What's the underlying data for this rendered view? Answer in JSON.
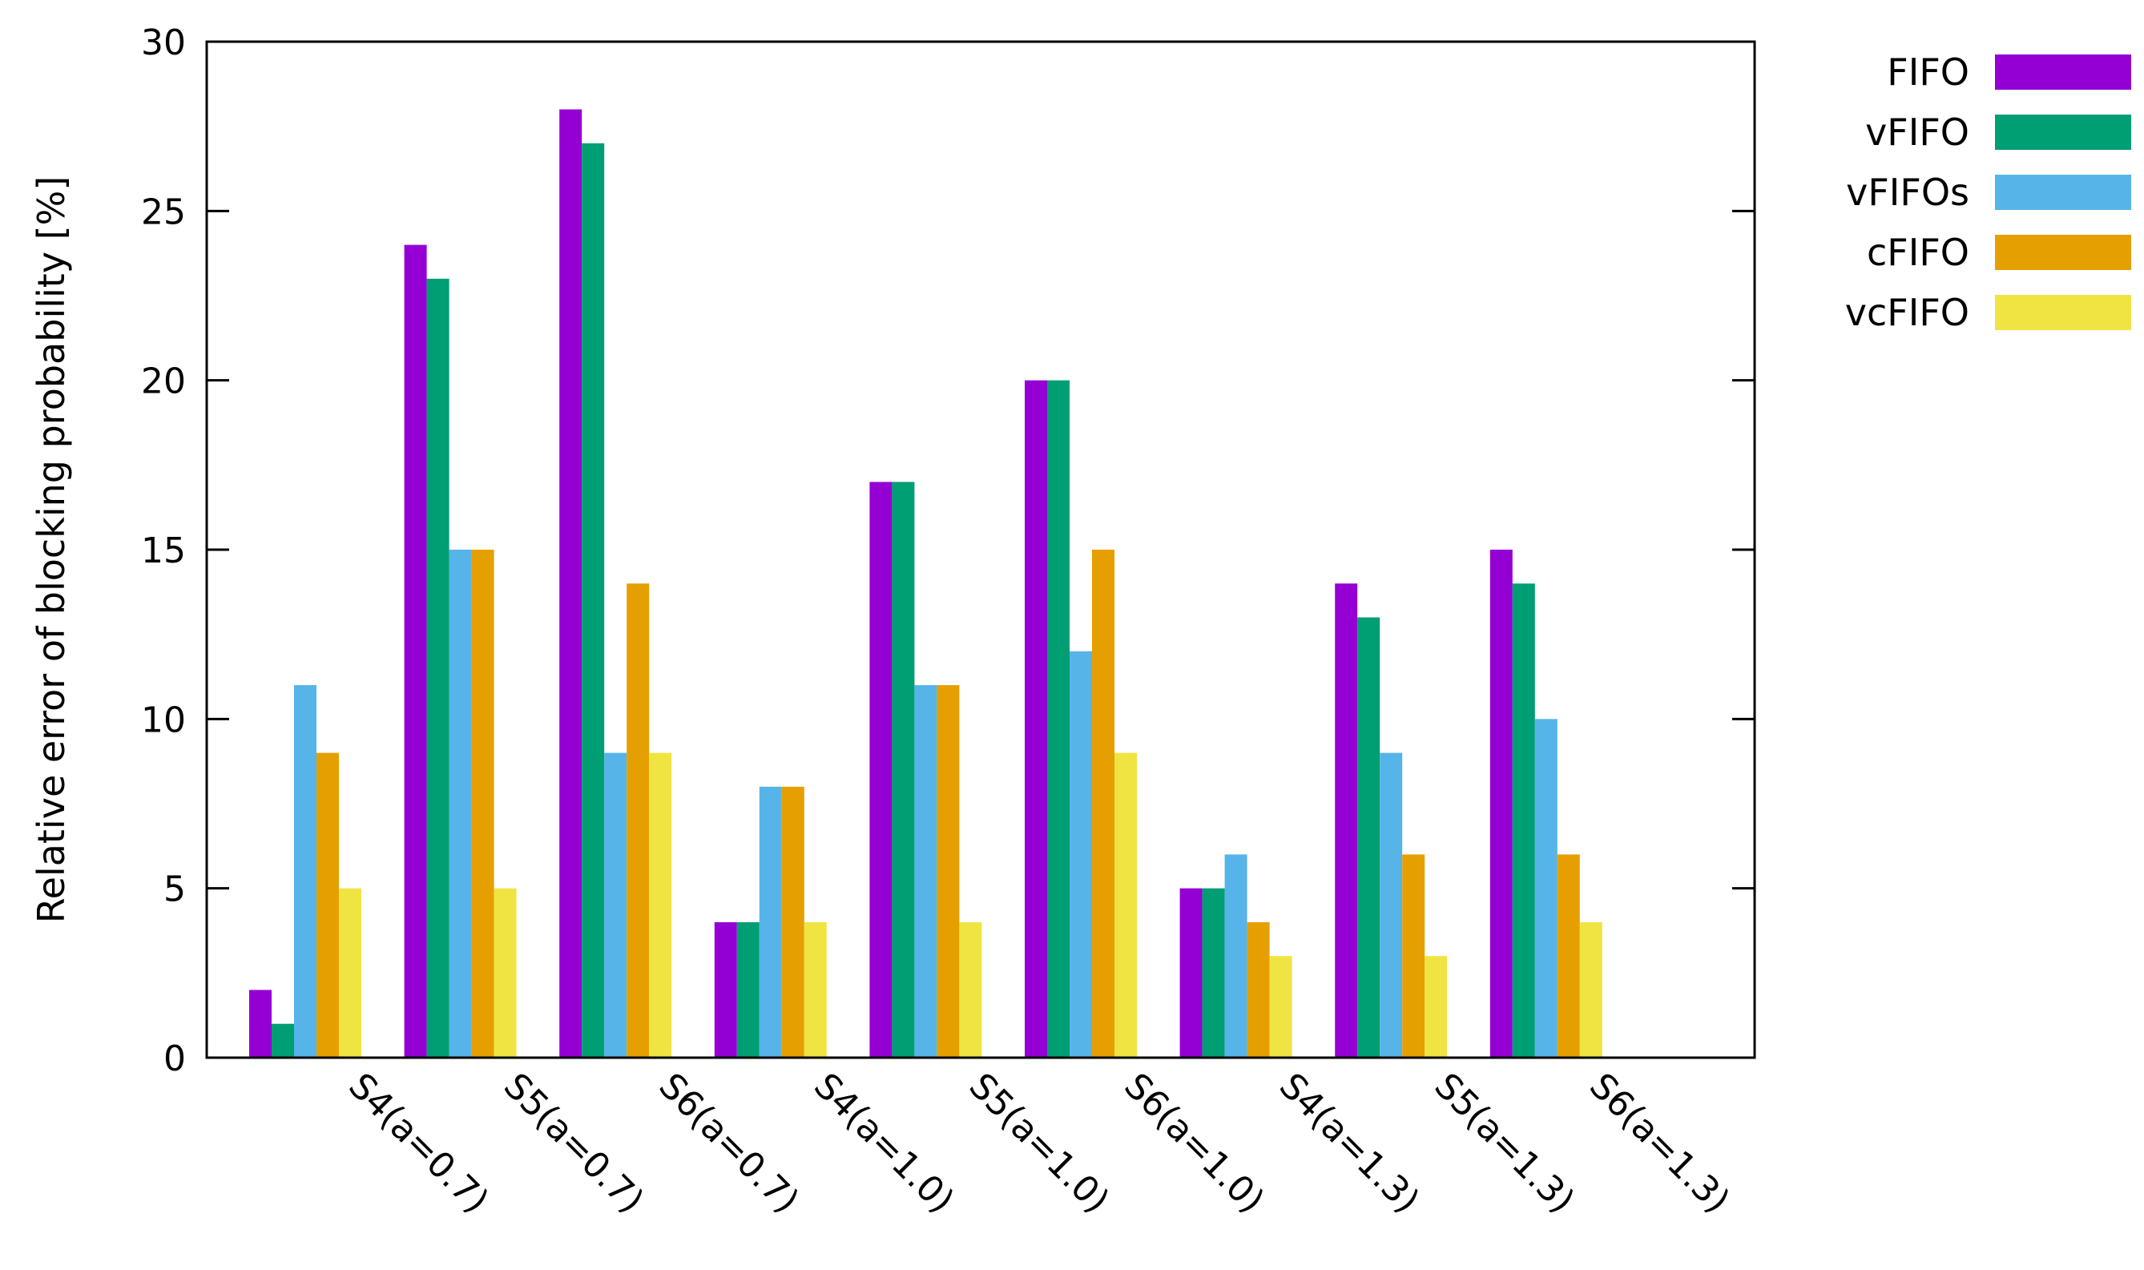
{
  "chart_data": {
    "type": "bar",
    "title": "",
    "xlabel": "",
    "ylabel": "Relative error of blocking probability [%]",
    "ylim": [
      0,
      30
    ],
    "yticks": [
      0,
      5,
      10,
      15,
      20,
      25,
      30
    ],
    "grid": false,
    "legend_position": "right",
    "categories": [
      "S4(a=0.7)",
      "S5(a=0.7)",
      "S6(a=0.7)",
      "S4(a=1.0)",
      "S5(a=1.0)",
      "S6(a=1.0)",
      "S4(a=1.3)",
      "S5(a=1.3)",
      "S6(a=1.3)"
    ],
    "series": [
      {
        "name": "FIFO",
        "color": "#9400d3",
        "values": [
          2,
          24,
          28,
          4,
          17,
          20,
          5,
          14,
          15
        ]
      },
      {
        "name": "vFIFO",
        "color": "#009e73",
        "values": [
          1,
          23,
          27,
          4,
          17,
          20,
          5,
          13,
          14
        ]
      },
      {
        "name": "vFIFOs",
        "color": "#56b4e9",
        "values": [
          11,
          15,
          9,
          8,
          11,
          12,
          6,
          9,
          10
        ]
      },
      {
        "name": "cFIFO",
        "color": "#e69f00",
        "values": [
          9,
          15,
          14,
          8,
          11,
          15,
          4,
          6,
          6
        ]
      },
      {
        "name": "vcFIFO",
        "color": "#f0e442",
        "values": [
          5,
          5,
          9,
          4,
          4,
          9,
          3,
          3,
          4
        ]
      }
    ]
  }
}
